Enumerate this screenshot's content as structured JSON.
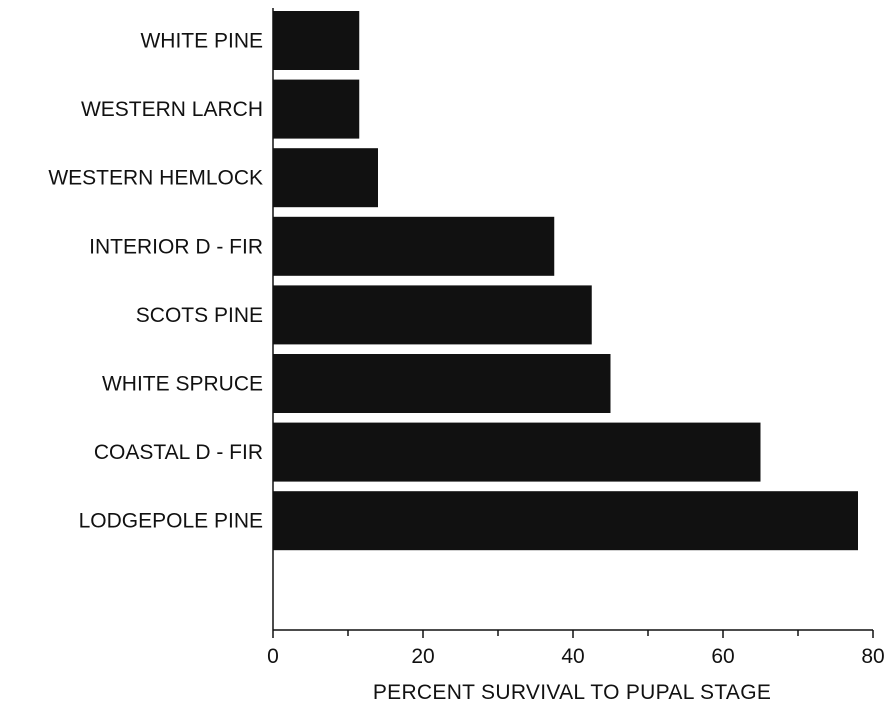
{
  "chart_data": {
    "type": "bar",
    "orientation": "horizontal",
    "categories": [
      "WHITE PINE",
      "WESTERN LARCH",
      "WESTERN HEMLOCK",
      "INTERIOR D - FIR",
      "SCOTS PINE",
      "WHITE SPRUCE",
      "COASTAL D - FIR",
      "LODGEPOLE PINE"
    ],
    "values": [
      11.5,
      11.5,
      14,
      37.5,
      42.5,
      45,
      65,
      78
    ],
    "xlabel": "PERCENT SURVIVAL TO PUPAL STAGE",
    "ylabel": "",
    "xlim": [
      0,
      80
    ],
    "xticks": [
      "0",
      "20",
      "40",
      "60",
      "80"
    ],
    "grid": false,
    "bar_color": "#111111"
  }
}
